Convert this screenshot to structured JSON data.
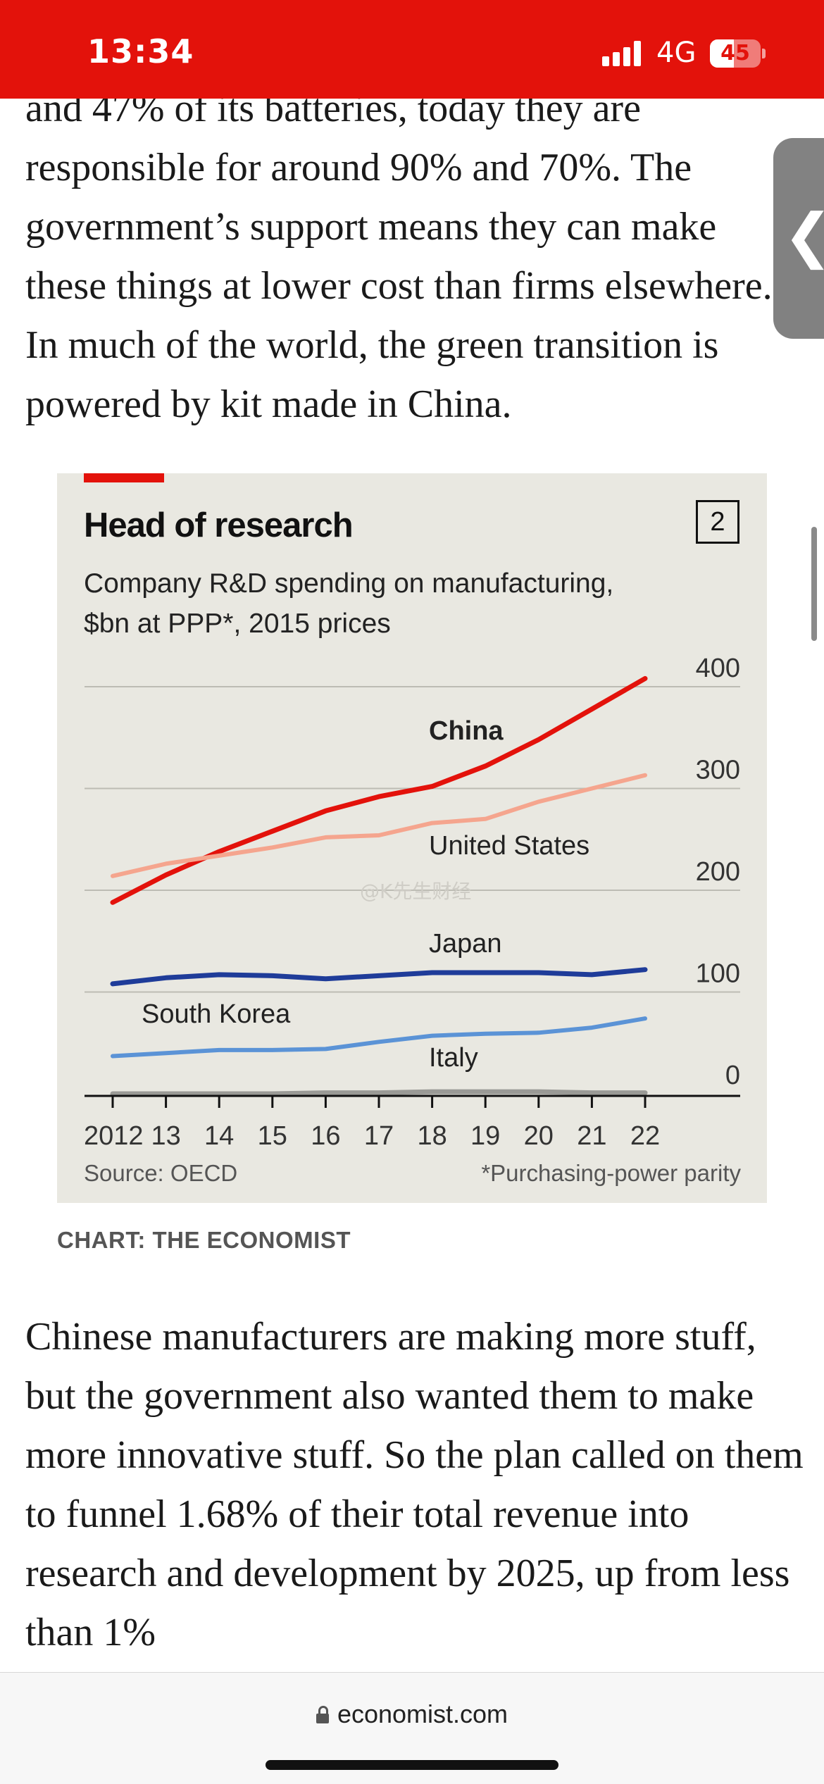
{
  "status_bar": {
    "time": "13:34",
    "network": "4G",
    "battery": "45",
    "background": "#e3120b"
  },
  "article": {
    "paragraph_top": "and 47% of its batteries, today they are responsible for around 90% and 70%. The government’s support means they can make these things at lower cost than firms elsewhere. In much of the world, the green transition is powered by kit made in China.",
    "paragraph_bottom": "Chinese manufacturers are making more stuff, but the government also wanted them to make more innovative stuff. So the plan called on them to funnel 1.68% of their total revenue into research and development by 2025, up from less than 1%"
  },
  "chart": {
    "number": "2",
    "source": "Source: OECD",
    "footnote": "*Purchasing-power parity",
    "credit": "CHART: THE ECONOMIST",
    "watermark": "@K先生财经"
  },
  "chart_data": {
    "type": "line",
    "title": "Head of research",
    "subtitle": "Company R&D spending on manufacturing, $bn at PPP*, 2015 prices",
    "x": [
      "2012",
      "13",
      "14",
      "15",
      "16",
      "17",
      "18",
      "19",
      "20",
      "21",
      "22"
    ],
    "y_ticks": [
      "0",
      "100",
      "200",
      "300",
      "400"
    ],
    "ylim": [
      0,
      400
    ],
    "grid": true,
    "series": [
      {
        "name": "China",
        "color": "#e3120b",
        "values": [
          188,
          215,
          238,
          258,
          278,
          292,
          302,
          322,
          348,
          378,
          408
        ]
      },
      {
        "name": "United States",
        "color": "#f5a58e",
        "values": [
          214,
          226,
          234,
          242,
          252,
          254,
          266,
          270,
          287,
          300,
          313
        ]
      },
      {
        "name": "Japan",
        "color": "#1f3c99",
        "values": [
          108,
          114,
          117,
          116,
          113,
          116,
          119,
          119,
          119,
          117,
          122
        ]
      },
      {
        "name": "South Korea",
        "color": "#5b93d6",
        "values": [
          37,
          40,
          43,
          43,
          44,
          51,
          57,
          59,
          60,
          65,
          74
        ]
      },
      {
        "name": "Italy",
        "color": "#9a9a96",
        "values": [
          0,
          0,
          0,
          0,
          1,
          1,
          2,
          2,
          2,
          1,
          1
        ]
      }
    ]
  },
  "browser": {
    "url": "economist.com"
  }
}
